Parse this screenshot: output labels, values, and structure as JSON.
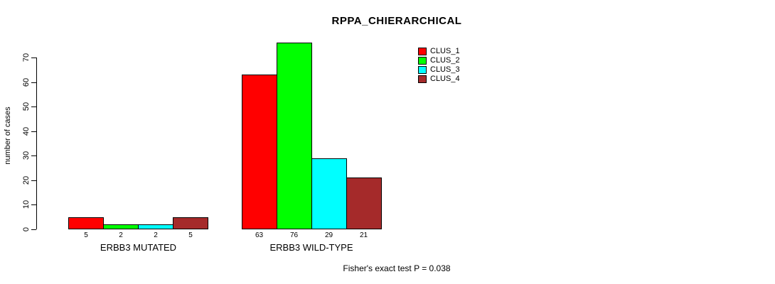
{
  "title": "RPPA_CHIERARCHICAL",
  "y_axis": {
    "label": "number of cases"
  },
  "footnote": "Fisher's exact test P = 0.038",
  "chart_data": {
    "type": "bar",
    "title": "RPPA_CHIERARCHICAL",
    "xlabel": "",
    "ylabel": "number of cases",
    "categories": [
      "ERBB3 MUTATED",
      "ERBB3 WILD-TYPE"
    ],
    "series": [
      {
        "name": "CLUS_1",
        "color": "#FF0000",
        "values": [
          5,
          63
        ]
      },
      {
        "name": "CLUS_2",
        "color": "#00FF00",
        "values": [
          2,
          76
        ]
      },
      {
        "name": "CLUS_3",
        "color": "#00FFFF",
        "values": [
          2,
          29
        ]
      },
      {
        "name": "CLUS_4",
        "color": "#A52A2A",
        "values": [
          5,
          21
        ]
      }
    ],
    "bar_value_labels": [
      [
        5,
        2,
        2,
        5
      ],
      [
        63,
        76,
        29,
        21
      ]
    ],
    "ylim": [
      0,
      70
    ],
    "yticks": [
      0,
      10,
      20,
      30,
      40,
      50,
      60,
      70
    ],
    "grid": false,
    "legend_position": "top-right",
    "annotation": "Fisher's exact test P = 0.038",
    "bar_border_color": "#000000"
  }
}
